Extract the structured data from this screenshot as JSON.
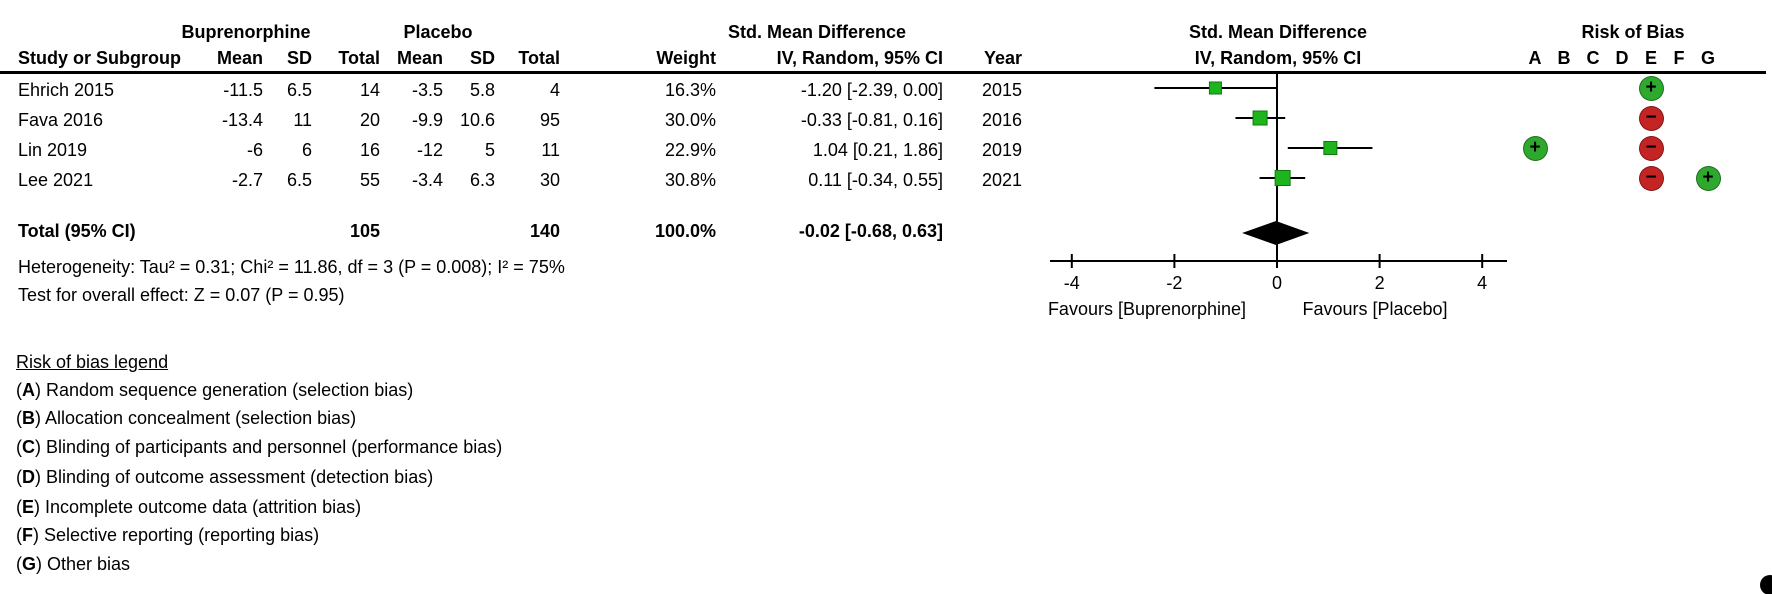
{
  "chart_data": {
    "type": "scatter",
    "subtype": "forest_plot_meta_analysis",
    "effect_measure": "Std. Mean Difference",
    "method": "IV, Random, 95% CI",
    "groups": {
      "experimental": "Buprenorphine",
      "control": "Placebo"
    },
    "columns": {
      "study": "Study or Subgroup",
      "mean": "Mean",
      "sd": "SD",
      "total": "Total",
      "weight": "Weight",
      "ci": "IV, Random, 95% CI",
      "year": "Year"
    },
    "studies": [
      {
        "name": "Ehrich 2015",
        "exp_mean": "-11.5",
        "exp_sd": "6.5",
        "exp_total": "14",
        "ctl_mean": "-3.5",
        "ctl_sd": "5.8",
        "ctl_total": "4",
        "weight": "16.3%",
        "ci_text": "-1.20 [-2.39, 0.00]",
        "year": "2015",
        "effect": -1.2,
        "ci_low": -2.39,
        "ci_high": 0.0,
        "weight_value": 16.3,
        "risk_of_bias": {
          "E": "+"
        }
      },
      {
        "name": "Fava 2016",
        "exp_mean": "-13.4",
        "exp_sd": "11",
        "exp_total": "20",
        "ctl_mean": "-9.9",
        "ctl_sd": "10.6",
        "ctl_total": "95",
        "weight": "30.0%",
        "ci_text": "-0.33 [-0.81, 0.16]",
        "year": "2016",
        "effect": -0.33,
        "ci_low": -0.81,
        "ci_high": 0.16,
        "weight_value": 30.0,
        "risk_of_bias": {
          "E": "-"
        }
      },
      {
        "name": "Lin 2019",
        "exp_mean": "-6",
        "exp_sd": "6",
        "exp_total": "16",
        "ctl_mean": "-12",
        "ctl_sd": "5",
        "ctl_total": "11",
        "weight": "22.9%",
        "ci_text": "1.04 [0.21, 1.86]",
        "year": "2019",
        "effect": 1.04,
        "ci_low": 0.21,
        "ci_high": 1.86,
        "weight_value": 22.9,
        "risk_of_bias": {
          "A": "+",
          "E": "-"
        }
      },
      {
        "name": "Lee 2021",
        "exp_mean": "-2.7",
        "exp_sd": "6.5",
        "exp_total": "55",
        "ctl_mean": "-3.4",
        "ctl_sd": "6.3",
        "ctl_total": "30",
        "weight": "30.8%",
        "ci_text": "0.11 [-0.34, 0.55]",
        "year": "2021",
        "effect": 0.11,
        "ci_low": -0.34,
        "ci_high": 0.55,
        "weight_value": 30.8,
        "risk_of_bias": {
          "E": "-",
          "G": "+"
        }
      }
    ],
    "total": {
      "label": "Total (95% CI)",
      "exp_total": "105",
      "ctl_total": "140",
      "weight": "100.0%",
      "ci_text": "-0.02 [-0.68, 0.63]",
      "effect": -0.02,
      "ci_low": -0.68,
      "ci_high": 0.63
    },
    "heterogeneity": "Heterogeneity: Tau² = 0.31; Chi² = 11.86, df = 3 (P = 0.008); I² = 75%",
    "overall_effect": "Test for overall effect: Z = 0.07 (P = 0.95)",
    "axis": {
      "min": -4,
      "max": 4,
      "ticks": [
        -4,
        -2,
        0,
        2,
        4
      ],
      "favours_left": "Favours [Buprenorphine]",
      "favours_right": "Favours [Placebo]"
    },
    "risk_of_bias": {
      "title": "Risk of Bias",
      "columns": [
        "A",
        "B",
        "C",
        "D",
        "E",
        "F",
        "G"
      ]
    },
    "legend": {
      "title": "Risk of bias legend",
      "items": [
        {
          "letter": "A",
          "text": "Random sequence generation (selection bias)"
        },
        {
          "letter": "B",
          "text": "Allocation concealment (selection bias)"
        },
        {
          "letter": "C",
          "text": "Blinding of participants and personnel (performance bias)"
        },
        {
          "letter": "D",
          "text": "Blinding of outcome assessment (detection bias)"
        },
        {
          "letter": "E",
          "text": "Incomplete outcome data (attrition bias)"
        },
        {
          "letter": "F",
          "text": "Selective reporting (reporting bias)"
        },
        {
          "letter": "G",
          "text": "Other bias"
        }
      ]
    },
    "colors": {
      "marker_green": "#1EB41E",
      "rob_green": "#2EA92E",
      "rob_red": "#C42424",
      "diamond": "#000000",
      "line": "#000000"
    }
  }
}
